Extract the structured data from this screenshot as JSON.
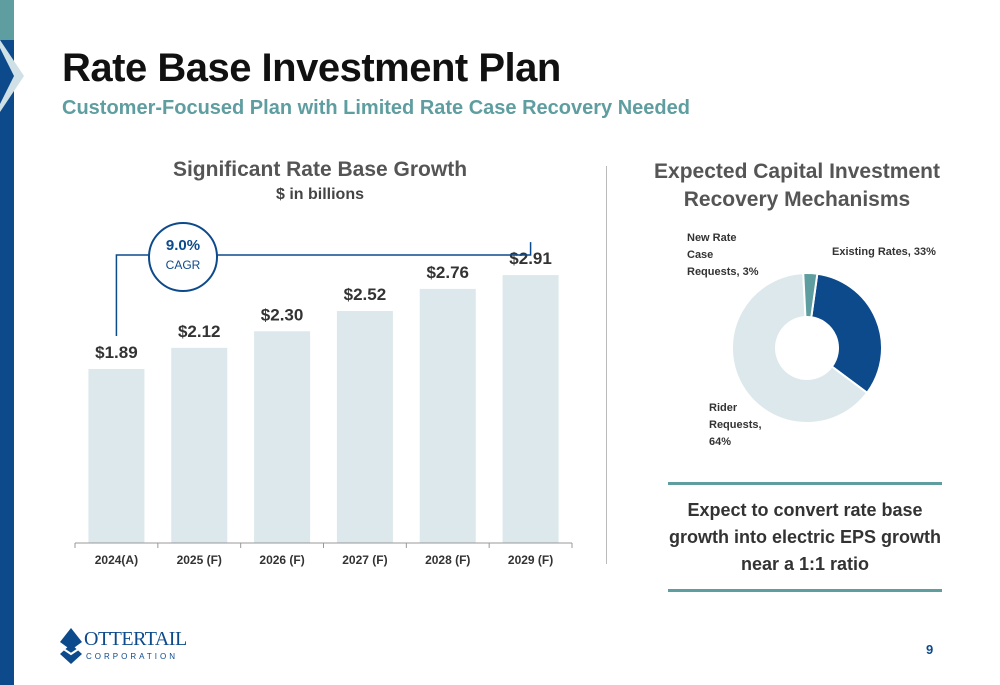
{
  "header": {
    "title": "Rate Base Investment Plan",
    "subtitle": "Customer-Focused Plan with Limited Rate Case Recovery Needed"
  },
  "cagr": {
    "value": "9.0%",
    "label": "CAGR"
  },
  "pie": {
    "title": "Expected Capital Investment Recovery Mechanisms",
    "labels": {
      "new_rate": [
        "New Rate",
        "Case",
        "Requests, 3%"
      ],
      "existing": "Existing Rates, 33%",
      "rider": [
        "Rider",
        "Requests,",
        "64%"
      ]
    }
  },
  "callout": "Expect to convert rate base growth into electric EPS growth near a 1:1 ratio",
  "footer": {
    "logo_name": "OTTERTAIL",
    "logo_sub": "CORPORATION",
    "page_number": "9"
  },
  "colors": {
    "navy": "#0d4a8c",
    "teal": "#5f9ea0",
    "bar": "#dce8eb",
    "rider": "#dce8eb"
  },
  "chart_data": [
    {
      "type": "bar",
      "title": "Significant Rate Base Growth",
      "subtitle": "$ in billions",
      "categories": [
        "2024(A)",
        "2025 (F)",
        "2026 (F)",
        "2027 (F)",
        "2028 (F)",
        "2029 (F)"
      ],
      "values": [
        1.89,
        2.12,
        2.3,
        2.52,
        2.76,
        2.91
      ],
      "value_labels": [
        "$1.89",
        "$2.12",
        "$2.30",
        "$2.52",
        "$2.76",
        "$2.91"
      ],
      "ylim": [
        0,
        3.4
      ],
      "grid": false
    },
    {
      "type": "pie",
      "title": "Expected Capital Investment Recovery Mechanisms",
      "slices": [
        {
          "name": "Existing Rates",
          "value": 33,
          "color": "#0d4a8c"
        },
        {
          "name": "Rider Requests",
          "value": 64,
          "color": "#dce8eb"
        },
        {
          "name": "New Rate Case Requests",
          "value": 3,
          "color": "#5f9ea0"
        }
      ]
    }
  ]
}
